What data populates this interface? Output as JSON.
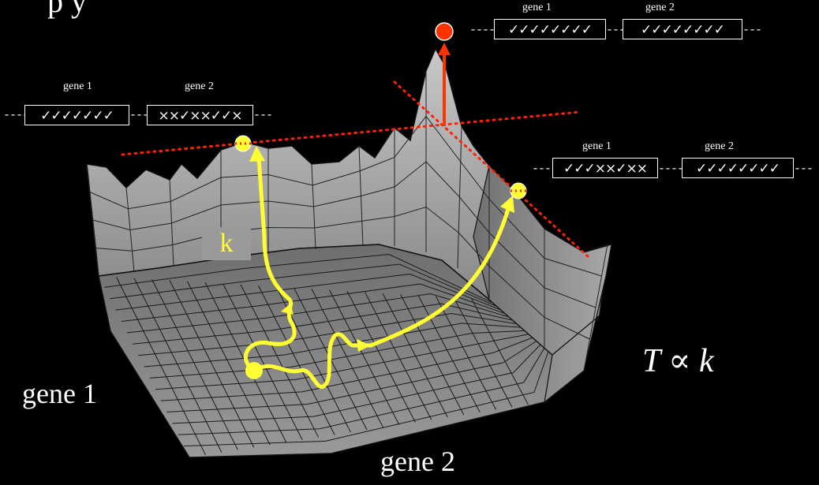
{
  "header_partial": "p y",
  "labels": {
    "gene1_axis": "gene 1",
    "gene2_axis": "gene 2",
    "k": "k",
    "formula": "T ∝ k"
  },
  "genotypes": {
    "left_peak": {
      "gene1_label": "gene 1",
      "gene1_seq": "✓✓✓✓✓✓✓",
      "gene2_label": "gene 2",
      "gene2_seq": "××✓××✓✓×"
    },
    "top_peak": {
      "gene1_label": "gene 1",
      "gene1_seq": "✓✓✓✓✓✓✓✓",
      "gene2_label": "gene 2",
      "gene2_seq": "✓✓✓✓✓✓✓✓"
    },
    "right_peak": {
      "gene1_label": "gene 1",
      "gene1_seq": "✓✓✓××✓××",
      "gene2_label": "gene 2",
      "gene2_seq": "✓✓✓✓✓✓✓✓"
    }
  },
  "colors": {
    "background": "#000000",
    "surface": "#8c8c8c",
    "path": "#ffff33",
    "peak_marker": "#ff3300",
    "tangent": "#ff2200",
    "text": "#ffffff"
  }
}
